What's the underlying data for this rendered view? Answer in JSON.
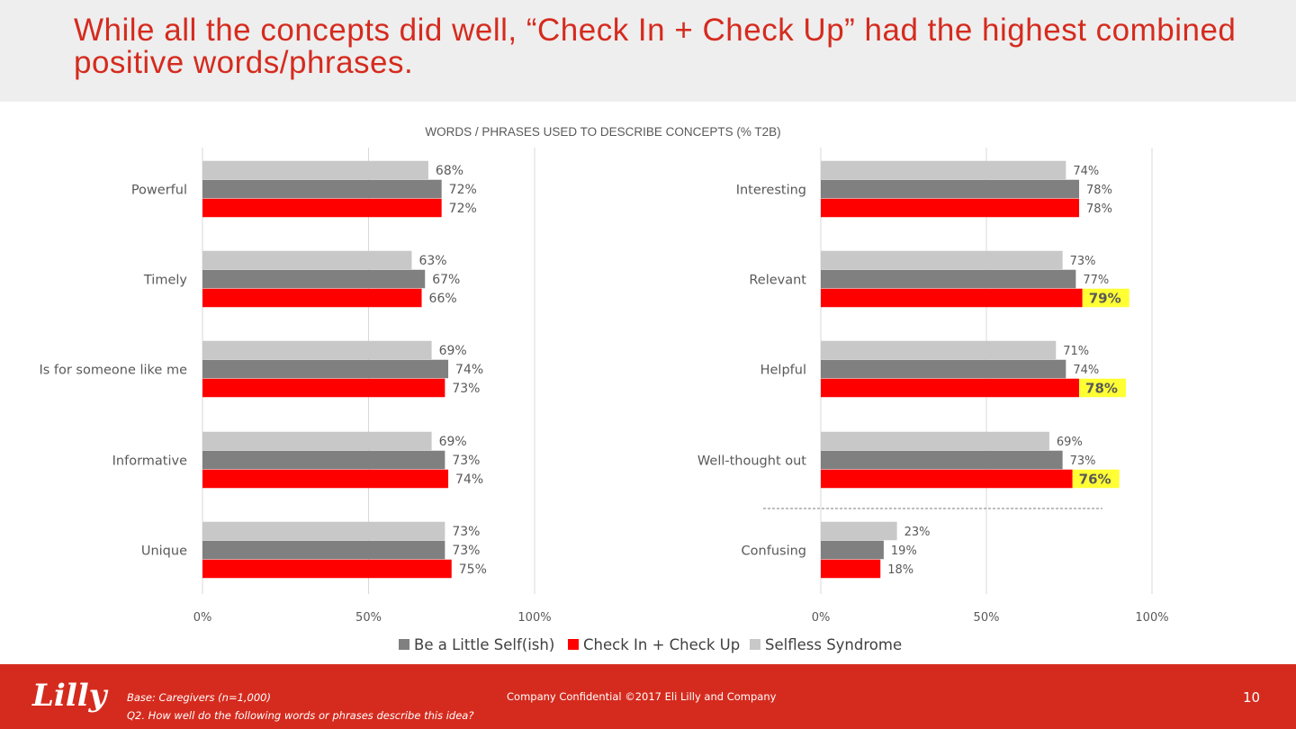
{
  "header": {
    "title": "While all the concepts did well, “Check In + Check Up” had the highest combined positive words/phrases."
  },
  "chart_data": {
    "type": "bar",
    "orientation": "horizontal",
    "title": "WORDS / PHRASES USED TO DESCRIBE CONCEPTS (% T2B)",
    "legend": {
      "placement": "bottom",
      "order": [
        "Be a Little Self(ish)",
        "Check In + Check Up",
        "Selfless Syndrome"
      ]
    },
    "colors": {
      "Selfless Syndrome": "#c8c8c8",
      "Be a Little Self(ish)": "#808080",
      "Check In + Check Up": "#ff0000",
      "highlight": "#ffff33"
    },
    "panels": [
      {
        "name": "left",
        "categories": [
          "Powerful",
          "Timely",
          "Is for someone like me",
          "Informative",
          "Unique"
        ],
        "series": [
          {
            "name": "Selfless Syndrome",
            "values": [
              68,
              63,
              69,
              69,
              73
            ]
          },
          {
            "name": "Be a Little Self(ish)",
            "values": [
              72,
              67,
              74,
              73,
              73
            ]
          },
          {
            "name": "Check In + Check Up",
            "values": [
              72,
              66,
              73,
              74,
              75
            ]
          }
        ],
        "xlim": [
          0,
          100
        ],
        "xticks": [
          "0%",
          "50%",
          "100%"
        ],
        "grid": true,
        "highlighted": []
      },
      {
        "name": "right",
        "categories": [
          "Interesting",
          "Relevant",
          "Helpful",
          "Well-thought out",
          "Confusing"
        ],
        "series": [
          {
            "name": "Selfless Syndrome",
            "values": [
              74,
              73,
              71,
              69,
              23
            ]
          },
          {
            "name": "Be a Little Self(ish)",
            "values": [
              78,
              77,
              74,
              73,
              19
            ]
          },
          {
            "name": "Check In + Check Up",
            "values": [
              78,
              79,
              78,
              76,
              18
            ]
          }
        ],
        "xlim": [
          0,
          100
        ],
        "xticks": [
          "0%",
          "50%",
          "100%"
        ],
        "grid": true,
        "highlighted": [
          "Relevant",
          "Helpful",
          "Well-thought out"
        ]
      }
    ]
  },
  "footer": {
    "logo_text": "Lilly",
    "base": "Base: Caregivers (n=1,000)",
    "question": "Q2. How well do the following words or phrases describe this idea?",
    "confidential": "Company Confidential  ©2017 Eli Lilly and Company",
    "page_number": "10"
  }
}
